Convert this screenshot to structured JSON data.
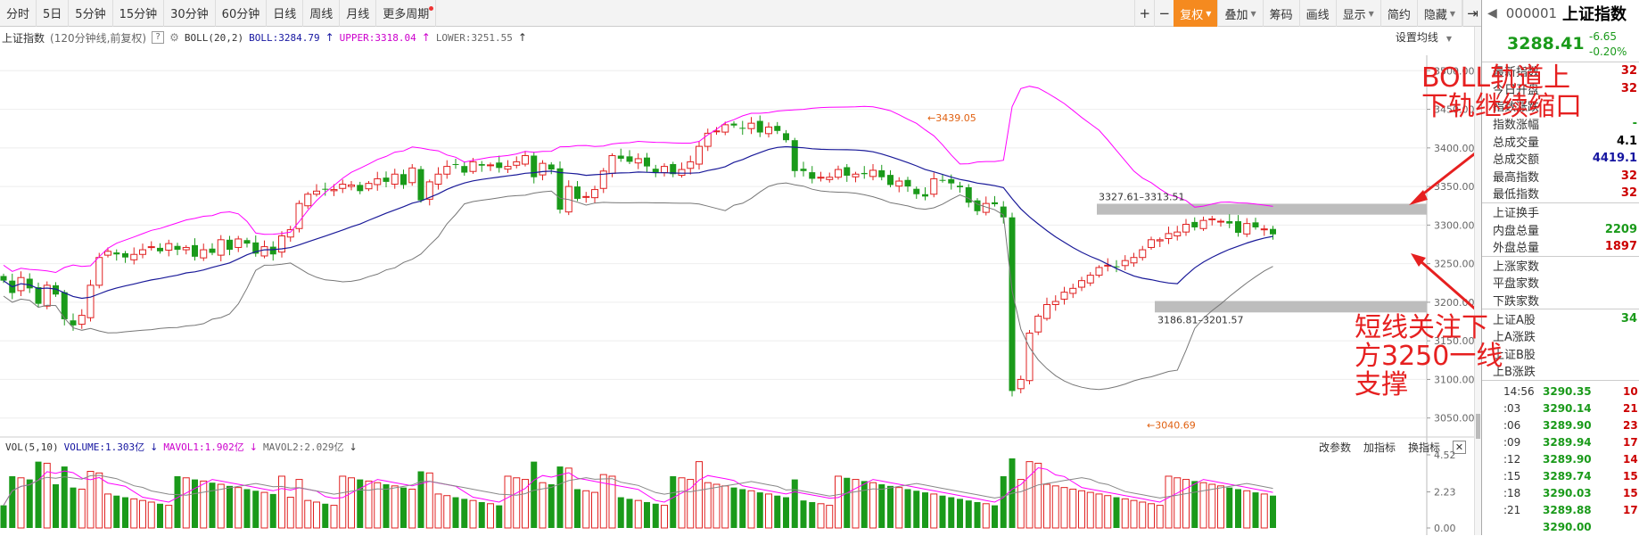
{
  "toolbar": {
    "periods": [
      "分时",
      "5日",
      "5分钟",
      "15分钟",
      "30分钟",
      "60分钟",
      "日线",
      "周线",
      "月线",
      "更多周期"
    ],
    "right": [
      "复权",
      "叠加",
      "筹码",
      "画线",
      "显示",
      "简约",
      "隐藏"
    ]
  },
  "info": {
    "index_name": "上证指数",
    "period_desc": "(120分钟线,前复权)",
    "indicator": "BOLL(20,2)",
    "boll": "BOLL:3284.79",
    "upper": "UPPER:3318.04",
    "lower": "LOWER:3251.55",
    "settings": "设置均线"
  },
  "price_axis": [
    "3500.00",
    "3450.00",
    "3400.00",
    "3350.00",
    "3300.00",
    "3250.00",
    "3200.00",
    "3150.00",
    "3100.00",
    "3050.00"
  ],
  "chart_labels": {
    "high": "3439.05",
    "low": "3040.69",
    "range_upper": "3327.61–3313.51",
    "range_lower": "3186.81–3201.57"
  },
  "annotations": {
    "top_line1": "BOLL轨道上",
    "top_line2": "下轨继续缩口",
    "bottom_line1": "短线关注下",
    "bottom_line2": "方3250一线",
    "bottom_line3": "支撑"
  },
  "volume": {
    "title": "VOL(5,10)",
    "volume": "VOLUME:1.303亿",
    "mavol1": "MAVOL1:1.902亿",
    "mavol2": "MAVOL2:2.029亿",
    "buttons": [
      "改参数",
      "加指标",
      "换指标"
    ],
    "axis": [
      "4.52",
      "2.23",
      "0.00"
    ]
  },
  "side": {
    "code": "000001",
    "name": "上证指数",
    "price": "3288.41",
    "change": "-6.65",
    "pct": "-0.20%",
    "group1": [
      {
        "label": "最新指数",
        "value": "32"
      },
      {
        "label": "今日开盘",
        "value": "32"
      },
      {
        "label": "指数涨跌",
        "value": ""
      },
      {
        "label": "指数涨幅",
        "value": "-"
      },
      {
        "label": "总成交量",
        "value": "4.1"
      },
      {
        "label": "总成交额",
        "value": "4419.1"
      },
      {
        "label": "最高指数",
        "value": "32"
      },
      {
        "label": "最低指数",
        "value": "32"
      }
    ],
    "group2": [
      {
        "label": "上证换手",
        "value": ""
      },
      {
        "label": "内盘总量",
        "value": "2209"
      },
      {
        "label": "外盘总量",
        "value": "1897"
      }
    ],
    "group3": [
      {
        "label": "上涨家数",
        "value": ""
      },
      {
        "label": "平盘家数",
        "value": ""
      },
      {
        "label": "下跌家数",
        "value": ""
      }
    ],
    "group4": [
      {
        "label": "上证A股",
        "value": "34"
      },
      {
        "label": "上A涨跌",
        "value": ""
      },
      {
        "label": "上证B股",
        "value": ""
      },
      {
        "label": "上B涨跌",
        "value": ""
      }
    ],
    "ticks": [
      {
        "t": "14:56",
        "p": "3290.35",
        "n": "10"
      },
      {
        "t": ":03",
        "p": "3290.14",
        "n": "21"
      },
      {
        "t": ":06",
        "p": "3289.90",
        "n": "23"
      },
      {
        "t": ":09",
        "p": "3289.94",
        "n": "17"
      },
      {
        "t": ":12",
        "p": "3289.90",
        "n": "14"
      },
      {
        "t": ":15",
        "p": "3289.74",
        "n": "15"
      },
      {
        "t": ":18",
        "p": "3290.03",
        "n": "15"
      },
      {
        "t": ":21",
        "p": "3289.88",
        "n": "17"
      },
      {
        "t": "",
        "p": "3290.00",
        "n": ""
      }
    ]
  },
  "chart_data": {
    "type": "candlestick",
    "price_range": [
      3030,
      3520
    ],
    "close": [
      3228,
      3212,
      3232,
      3218,
      3198,
      3222,
      3210,
      3178,
      3170,
      3183,
      3222,
      3258,
      3266,
      3262,
      3258,
      3262,
      3268,
      3272,
      3266,
      3276,
      3268,
      3271,
      3259,
      3268,
      3264,
      3281,
      3268,
      3282,
      3276,
      3263,
      3272,
      3262,
      3286,
      3294,
      3328,
      3340,
      3344,
      3346,
      3346,
      3353,
      3352,
      3344,
      3354,
      3360,
      3356,
      3366,
      3352,
      3374,
      3332,
      3356,
      3366,
      3376,
      3378,
      3368,
      3382,
      3377,
      3378,
      3374,
      3376,
      3382,
      3390,
      3362,
      3380,
      3372,
      3320,
      3350,
      3334,
      3337,
      3346,
      3370,
      3390,
      3386,
      3382,
      3386,
      3376,
      3368,
      3376,
      3366,
      3372,
      3382,
      3402,
      3419,
      3422,
      3430,
      3429,
      3425,
      3432,
      3420,
      3427,
      3422,
      3410,
      3370,
      3370,
      3360,
      3362,
      3362,
      3372,
      3364,
      3366,
      3366,
      3371,
      3362,
      3352,
      3357,
      3350,
      3340,
      3337,
      3360,
      3358,
      3354,
      3349,
      3329,
      3318,
      3328,
      3327,
      3310,
      3085,
      3100,
      3160,
      3182,
      3197,
      3201,
      3213,
      3218,
      3228,
      3235,
      3245,
      3248,
      3246,
      3254,
      3258,
      3268,
      3281,
      3281,
      3289,
      3291,
      3301,
      3297,
      3306,
      3308,
      3305,
      3302,
      3290,
      3302,
      3297,
      3295,
      3288
    ]
  }
}
